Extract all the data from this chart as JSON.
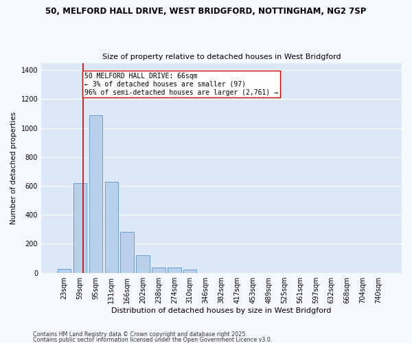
{
  "title1": "50, MELFORD HALL DRIVE, WEST BRIDGFORD, NOTTINGHAM, NG2 7SP",
  "title2": "Size of property relative to detached houses in West Bridgford",
  "xlabel": "Distribution of detached houses by size in West Bridgford",
  "ylabel": "Number of detached properties",
  "bar_categories": [
    "23sqm",
    "59sqm",
    "95sqm",
    "131sqm",
    "166sqm",
    "202sqm",
    "238sqm",
    "274sqm",
    "310sqm",
    "346sqm",
    "382sqm",
    "417sqm",
    "453sqm",
    "489sqm",
    "525sqm",
    "561sqm",
    "597sqm",
    "632sqm",
    "668sqm",
    "704sqm",
    "740sqm"
  ],
  "bar_values": [
    25,
    620,
    1090,
    630,
    280,
    120,
    35,
    35,
    20,
    0,
    0,
    0,
    0,
    0,
    0,
    0,
    0,
    0,
    0,
    0,
    0
  ],
  "bar_color": "#b8d0ea",
  "bar_edge_color": "#6aa0cc",
  "bg_color": "#dce8f5",
  "grid_color": "#ffffff",
  "red_line_color": "#cc0000",
  "annotation_text": "50 MELFORD HALL DRIVE: 66sqm\n← 3% of detached houses are smaller (97)\n96% of semi-detached houses are larger (2,761) →",
  "annotation_box_color": "#ffffff",
  "annotation_box_edge": "#cc0000",
  "ylim": [
    0,
    1450
  ],
  "footer1": "Contains HM Land Registry data © Crown copyright and database right 2025.",
  "footer2": "Contains public sector information licensed under the Open Government Licence v3.0."
}
